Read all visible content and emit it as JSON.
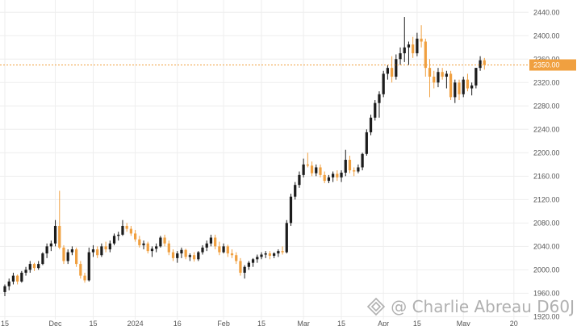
{
  "chart_data": {
    "type": "candlestick",
    "y_ticks": [
      "1920.00",
      "1960.00",
      "2000.00",
      "2040.00",
      "2080.00",
      "2120.00",
      "2160.00",
      "2200.00",
      "2240.00",
      "2280.00",
      "2320.00",
      "2360.00",
      "2400.00",
      "2440.00"
    ],
    "ylim": [
      1915,
      2450
    ],
    "x_ticks": [
      {
        "label": "15",
        "i": 0
      },
      {
        "label": "Dec",
        "i": 12
      },
      {
        "label": "15",
        "i": 21
      },
      {
        "label": "2024",
        "i": 31
      },
      {
        "label": "16",
        "i": 41
      },
      {
        "label": "Feb",
        "i": 52
      },
      {
        "label": "15",
        "i": 61
      },
      {
        "label": "Mar",
        "i": 71
      },
      {
        "label": "15",
        "i": 80
      },
      {
        "label": "Apr",
        "i": 90
      },
      {
        "label": "15",
        "i": 98
      },
      {
        "label": "May",
        "i": 109
      },
      {
        "label": "20",
        "i": 121
      }
    ],
    "x_count": 123,
    "last_price_label": "2350.00",
    "last_price": 2350,
    "colors": {
      "up": "#1c1c1c",
      "down": "#f0a040",
      "price_line": "#f0a040",
      "grid": "#eeeeee",
      "axis_text": "#555555"
    },
    "candles": [
      [
        1962,
        1975,
        1955,
        1972
      ],
      [
        1972,
        1985,
        1965,
        1980
      ],
      [
        1980,
        1995,
        1975,
        1990
      ],
      [
        1990,
        1992,
        1975,
        1980
      ],
      [
        1980,
        1998,
        1978,
        1995
      ],
      [
        1995,
        2005,
        1990,
        2000
      ],
      [
        2000,
        2015,
        1995,
        2010
      ],
      [
        2010,
        2012,
        1998,
        2003
      ],
      [
        2003,
        2015,
        2000,
        2010
      ],
      [
        2010,
        2030,
        2008,
        2028
      ],
      [
        2028,
        2045,
        2020,
        2040
      ],
      [
        2040,
        2050,
        2032,
        2045
      ],
      [
        2045,
        2085,
        2040,
        2075
      ],
      [
        2075,
        2135,
        2035,
        2038
      ],
      [
        2038,
        2042,
        2010,
        2015
      ],
      [
        2015,
        2035,
        2010,
        2030
      ],
      [
        2030,
        2040,
        2025,
        2035
      ],
      [
        2035,
        2038,
        2005,
        2010
      ],
      [
        2010,
        2015,
        1985,
        1990
      ],
      [
        1990,
        1995,
        1978,
        1982
      ],
      [
        1982,
        2038,
        1980,
        2030
      ],
      [
        2030,
        2042,
        2022,
        2035
      ],
      [
        2035,
        2040,
        2020,
        2025
      ],
      [
        2025,
        2045,
        2022,
        2040
      ],
      [
        2040,
        2048,
        2030,
        2035
      ],
      [
        2035,
        2050,
        2030,
        2045
      ],
      [
        2045,
        2062,
        2042,
        2058
      ],
      [
        2058,
        2065,
        2050,
        2060
      ],
      [
        2060,
        2085,
        2058,
        2075
      ],
      [
        2075,
        2080,
        2065,
        2070
      ],
      [
        2070,
        2075,
        2058,
        2062
      ],
      [
        2062,
        2068,
        2048,
        2052
      ],
      [
        2052,
        2058,
        2038,
        2042
      ],
      [
        2042,
        2050,
        2035,
        2045
      ],
      [
        2045,
        2048,
        2028,
        2032
      ],
      [
        2032,
        2040,
        2022,
        2036
      ],
      [
        2036,
        2045,
        2030,
        2040
      ],
      [
        2040,
        2058,
        2038,
        2055
      ],
      [
        2055,
        2060,
        2040,
        2045
      ],
      [
        2045,
        2050,
        2025,
        2030
      ],
      [
        2030,
        2035,
        2015,
        2020
      ],
      [
        2020,
        2032,
        2012,
        2028
      ],
      [
        2028,
        2038,
        2020,
        2034
      ],
      [
        2034,
        2036,
        2018,
        2022
      ],
      [
        2022,
        2028,
        2015,
        2025
      ],
      [
        2025,
        2030,
        2014,
        2018
      ],
      [
        2018,
        2032,
        2015,
        2030
      ],
      [
        2030,
        2042,
        2026,
        2038
      ],
      [
        2038,
        2050,
        2032,
        2045
      ],
      [
        2045,
        2060,
        2040,
        2055
      ],
      [
        2055,
        2060,
        2035,
        2040
      ],
      [
        2040,
        2048,
        2025,
        2030
      ],
      [
        2030,
        2045,
        2028,
        2040
      ],
      [
        2040,
        2043,
        2022,
        2028
      ],
      [
        2028,
        2035,
        2020,
        2025
      ],
      [
        2025,
        2030,
        2010,
        2015
      ],
      [
        2015,
        2020,
        1990,
        1995
      ],
      [
        1995,
        2008,
        1985,
        2005
      ],
      [
        2005,
        2015,
        2000,
        2012
      ],
      [
        2012,
        2020,
        2005,
        2018
      ],
      [
        2018,
        2026,
        2012,
        2022
      ],
      [
        2022,
        2030,
        2018,
        2026
      ],
      [
        2026,
        2032,
        2020,
        2028
      ],
      [
        2028,
        2032,
        2018,
        2024
      ],
      [
        2024,
        2030,
        2020,
        2028
      ],
      [
        2028,
        2035,
        2022,
        2032
      ],
      [
        2032,
        2040,
        2026,
        2030
      ],
      [
        2030,
        2085,
        2028,
        2080
      ],
      [
        2080,
        2130,
        2075,
        2125
      ],
      [
        2125,
        2150,
        2120,
        2145
      ],
      [
        2145,
        2168,
        2140,
        2162
      ],
      [
        2162,
        2190,
        2158,
        2180
      ],
      [
        2180,
        2200,
        2175,
        2178
      ],
      [
        2178,
        2185,
        2160,
        2165
      ],
      [
        2165,
        2180,
        2160,
        2175
      ],
      [
        2175,
        2180,
        2158,
        2162
      ],
      [
        2162,
        2168,
        2148,
        2152
      ],
      [
        2152,
        2162,
        2148,
        2158
      ],
      [
        2158,
        2168,
        2150,
        2164
      ],
      [
        2164,
        2170,
        2152,
        2158
      ],
      [
        2158,
        2170,
        2150,
        2166
      ],
      [
        2166,
        2205,
        2160,
        2188
      ],
      [
        2188,
        2195,
        2165,
        2170
      ],
      [
        2170,
        2175,
        2160,
        2168
      ],
      [
        2168,
        2180,
        2165,
        2175
      ],
      [
        2175,
        2200,
        2170,
        2198
      ],
      [
        2198,
        2240,
        2195,
        2235
      ],
      [
        2235,
        2265,
        2230,
        2260
      ],
      [
        2260,
        2290,
        2255,
        2285
      ],
      [
        2285,
        2305,
        2260,
        2300
      ],
      [
        2300,
        2340,
        2295,
        2335
      ],
      [
        2335,
        2350,
        2325,
        2345
      ],
      [
        2345,
        2365,
        2320,
        2330
      ],
      [
        2330,
        2368,
        2325,
        2360
      ],
      [
        2360,
        2380,
        2350,
        2370
      ],
      [
        2370,
        2432,
        2355,
        2380
      ],
      [
        2380,
        2390,
        2350,
        2385
      ],
      [
        2385,
        2398,
        2362,
        2370
      ],
      [
        2370,
        2405,
        2365,
        2395
      ],
      [
        2395,
        2418,
        2380,
        2390
      ],
      [
        2390,
        2395,
        2330,
        2345
      ],
      [
        2345,
        2360,
        2295,
        2330
      ],
      [
        2330,
        2340,
        2310,
        2320
      ],
      [
        2320,
        2345,
        2312,
        2338
      ],
      [
        2338,
        2345,
        2325,
        2330
      ],
      [
        2330,
        2340,
        2310,
        2335
      ],
      [
        2335,
        2340,
        2290,
        2295
      ],
      [
        2295,
        2325,
        2285,
        2320
      ],
      [
        2320,
        2325,
        2290,
        2300
      ],
      [
        2300,
        2330,
        2295,
        2325
      ],
      [
        2325,
        2335,
        2305,
        2310
      ],
      [
        2310,
        2320,
        2298,
        2315
      ],
      [
        2315,
        2345,
        2310,
        2345
      ],
      [
        2345,
        2365,
        2340,
        2358
      ],
      [
        2358,
        2362,
        2342,
        2350
      ]
    ]
  },
  "watermark": {
    "text": "@ Charlie Abreau D60J",
    "icon": "binance-diamond-icon"
  }
}
